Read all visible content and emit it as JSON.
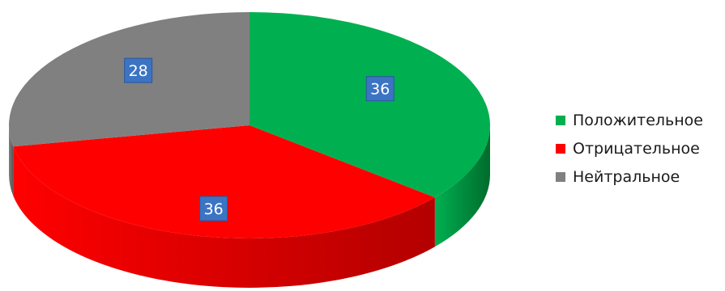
{
  "chart_data": {
    "type": "pie",
    "style": "3d",
    "categories": [
      "Положительное",
      "Отрицательное",
      "Нейтральное"
    ],
    "values": [
      36,
      36,
      28
    ],
    "data_labels": [
      "36",
      "36",
      "28"
    ],
    "colors": [
      "#00b050",
      "#ff0000",
      "#808080"
    ],
    "side_colors": [
      "#006b2c",
      "#b30000",
      "#555555"
    ],
    "label_box_color": "#3c74c4",
    "title": "",
    "legend_position": "right"
  }
}
